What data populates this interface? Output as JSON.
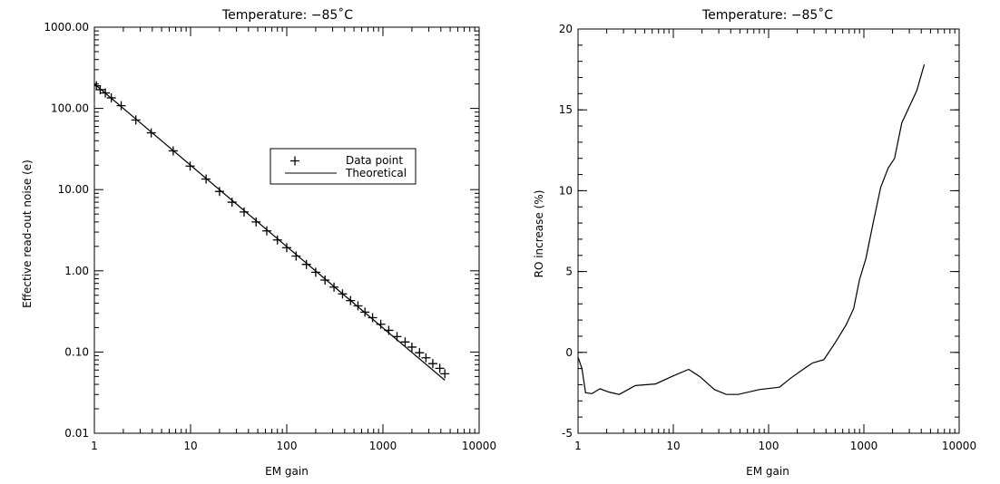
{
  "chart_data": [
    {
      "type": "line",
      "title": "Temperature: −85˚C",
      "xlabel": "EM gain",
      "ylabel": "Effective read-out noise (e)",
      "xscale": "log",
      "yscale": "log",
      "xlim": [
        1,
        10000
      ],
      "ylim": [
        0.01,
        1000
      ],
      "xtick_labels": [
        "1",
        "10",
        "100",
        "1000",
        "10000"
      ],
      "xtick_values": [
        1,
        10,
        100,
        1000,
        10000
      ],
      "ytick_labels": [
        "0.01",
        "0.10",
        "1.00",
        "10.00",
        "100.00",
        "1000.00"
      ],
      "ytick_values": [
        0.01,
        0.1,
        1,
        10,
        100,
        1000
      ],
      "legend_position": "right-middle",
      "series": [
        {
          "name": "Data point",
          "marker": "plus",
          "x": [
            1.05,
            1.15,
            1.3,
            1.5,
            1.9,
            2.7,
            3.9,
            6.6,
            9.9,
            14.5,
            20,
            27,
            36,
            48,
            62,
            80,
            100,
            125,
            160,
            200,
            250,
            310,
            380,
            460,
            550,
            650,
            780,
            950,
            1150,
            1400,
            1700,
            2000,
            2400,
            2800,
            3300,
            3900,
            4400
          ],
          "y": [
            190,
            170,
            155,
            135,
            108,
            72,
            50,
            30,
            19.5,
            13.5,
            9.5,
            7.0,
            5.3,
            4.0,
            3.1,
            2.4,
            1.93,
            1.52,
            1.2,
            0.96,
            0.77,
            0.63,
            0.52,
            0.43,
            0.37,
            0.31,
            0.265,
            0.22,
            0.185,
            0.155,
            0.133,
            0.115,
            0.098,
            0.085,
            0.072,
            0.063,
            0.054
          ]
        },
        {
          "name": "Theoretical",
          "marker": "none",
          "x": [
            1,
            4400
          ],
          "y": [
            200,
            0.045
          ]
        }
      ]
    },
    {
      "type": "line",
      "title": "Temperature: −85˚C",
      "xlabel": "EM gain",
      "ylabel": "RO increase (%)",
      "xscale": "log",
      "yscale": "linear",
      "xlim": [
        1,
        10000
      ],
      "ylim": [
        -5,
        20
      ],
      "xtick_labels": [
        "1",
        "10",
        "100",
        "1000",
        "10000"
      ],
      "xtick_values": [
        1,
        10,
        100,
        1000,
        10000
      ],
      "ytick_labels": [
        "-5",
        "0",
        "5",
        "10",
        "15",
        "20"
      ],
      "ytick_values": [
        -5,
        0,
        5,
        10,
        15,
        20
      ],
      "series": [
        {
          "x": [
            1,
            1.1,
            1.2,
            1.4,
            1.7,
            2.1,
            2.7,
            4,
            6.5,
            10,
            14.5,
            19,
            27,
            36,
            48,
            80,
            130,
            170,
            250,
            290,
            380,
            500,
            650,
            780,
            900,
            1050,
            1250,
            1500,
            1800,
            2100,
            2500,
            3000,
            3600,
            4300
          ],
          "y": [
            -0.3,
            -1.0,
            -2.5,
            -2.55,
            -2.25,
            -2.45,
            -2.6,
            -2.05,
            -1.95,
            -1.45,
            -1.05,
            -1.5,
            -2.3,
            -2.6,
            -2.6,
            -2.3,
            -2.15,
            -1.6,
            -0.9,
            -0.65,
            -0.45,
            0.6,
            1.7,
            2.7,
            4.5,
            5.8,
            8.0,
            10.2,
            11.4,
            12.0,
            14.2,
            15.2,
            16.2,
            17.8
          ]
        }
      ]
    }
  ]
}
